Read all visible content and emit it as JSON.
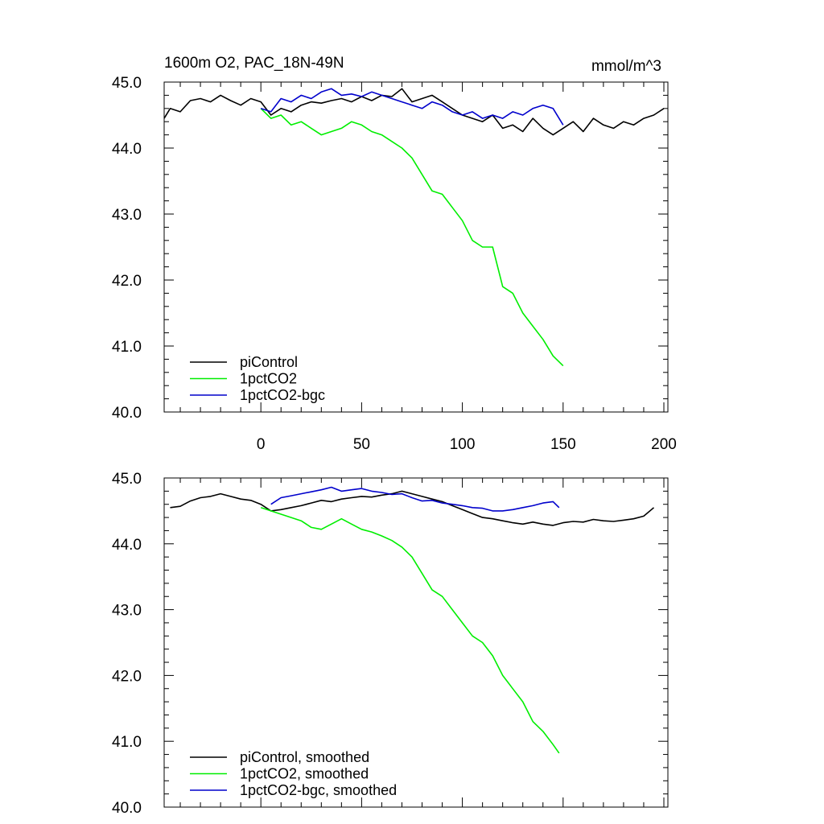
{
  "chart_data": [
    {
      "type": "line",
      "title": "1600m O2, PAC_18N-49N",
      "units": "mmol/m^3",
      "xlim": [
        -48,
        202
      ],
      "ylim": [
        40.0,
        45.0
      ],
      "xticks": [
        0,
        50,
        100,
        150,
        200
      ],
      "xtick_labels": [
        "0",
        "50",
        "100",
        "150",
        "200"
      ],
      "yticks": [
        40,
        41,
        42,
        43,
        44,
        45
      ],
      "ytick_labels": [
        "40.0",
        "41.0",
        "42.0",
        "43.0",
        "44.0",
        "45.0"
      ],
      "legend_position": "bottom-left",
      "series": [
        {
          "name": "piControl",
          "color": "#000000",
          "x": [
            -48,
            -45,
            -40,
            -35,
            -30,
            -25,
            -20,
            -15,
            -10,
            -5,
            0,
            5,
            10,
            15,
            20,
            25,
            30,
            35,
            40,
            45,
            50,
            55,
            60,
            65,
            70,
            75,
            80,
            85,
            90,
            95,
            100,
            105,
            110,
            115,
            120,
            125,
            130,
            135,
            140,
            145,
            150,
            155,
            160,
            165,
            170,
            175,
            180,
            185,
            190,
            195,
            200
          ],
          "y": [
            44.45,
            44.6,
            44.55,
            44.72,
            44.75,
            44.7,
            44.8,
            44.72,
            44.65,
            44.75,
            44.7,
            44.5,
            44.6,
            44.55,
            44.65,
            44.7,
            44.68,
            44.72,
            44.75,
            44.7,
            44.78,
            44.72,
            44.8,
            44.78,
            44.9,
            44.7,
            44.75,
            44.8,
            44.7,
            44.6,
            44.5,
            44.45,
            44.4,
            44.5,
            44.3,
            44.35,
            44.25,
            44.45,
            44.3,
            44.2,
            44.3,
            44.4,
            44.25,
            44.45,
            44.35,
            44.3,
            44.4,
            44.35,
            44.45,
            44.5,
            44.6
          ]
        },
        {
          "name": "1pctCO2",
          "color": "#00ee00",
          "x": [
            0,
            5,
            10,
            15,
            20,
            25,
            30,
            35,
            40,
            45,
            50,
            55,
            60,
            65,
            70,
            75,
            80,
            85,
            90,
            95,
            100,
            105,
            110,
            115,
            120,
            125,
            130,
            135,
            140,
            145,
            150
          ],
          "y": [
            44.6,
            44.45,
            44.5,
            44.35,
            44.4,
            44.3,
            44.2,
            44.25,
            44.3,
            44.4,
            44.35,
            44.25,
            44.2,
            44.1,
            44.0,
            43.85,
            43.6,
            43.35,
            43.3,
            43.1,
            42.9,
            42.6,
            42.5,
            42.5,
            41.9,
            41.8,
            41.5,
            41.3,
            41.1,
            40.85,
            40.7
          ]
        },
        {
          "name": "1pctCO2-bgc",
          "color": "#0000cc",
          "x": [
            0,
            5,
            10,
            15,
            20,
            25,
            30,
            35,
            40,
            45,
            50,
            55,
            60,
            65,
            70,
            75,
            80,
            85,
            90,
            95,
            100,
            105,
            110,
            115,
            120,
            125,
            130,
            135,
            140,
            145,
            150
          ],
          "y": [
            44.6,
            44.55,
            44.75,
            44.7,
            44.8,
            44.75,
            44.85,
            44.9,
            44.8,
            44.82,
            44.78,
            44.85,
            44.8,
            44.75,
            44.7,
            44.65,
            44.6,
            44.7,
            44.65,
            44.55,
            44.5,
            44.55,
            44.45,
            44.5,
            44.45,
            44.55,
            44.5,
            44.6,
            44.65,
            44.6,
            44.35
          ]
        }
      ]
    },
    {
      "type": "line",
      "xlim": [
        -48,
        202
      ],
      "ylim": [
        40.0,
        45.0
      ],
      "yticks": [
        40,
        41,
        42,
        43,
        44,
        45
      ],
      "ytick_labels": [
        "40.0",
        "41.0",
        "42.0",
        "43.0",
        "44.0",
        "45.0"
      ],
      "legend_position": "bottom-left",
      "series": [
        {
          "name": "piControl, smoothed",
          "color": "#000000",
          "x": [
            -45,
            -40,
            -35,
            -30,
            -25,
            -20,
            -15,
            -10,
            -5,
            0,
            5,
            10,
            15,
            20,
            25,
            30,
            35,
            40,
            45,
            50,
            55,
            60,
            65,
            70,
            75,
            80,
            85,
            90,
            95,
            100,
            105,
            110,
            115,
            120,
            125,
            130,
            135,
            140,
            145,
            150,
            155,
            160,
            165,
            170,
            175,
            180,
            185,
            190,
            195
          ],
          "y": [
            44.55,
            44.57,
            44.65,
            44.7,
            44.72,
            44.76,
            44.72,
            44.68,
            44.66,
            44.6,
            44.5,
            44.52,
            44.55,
            44.58,
            44.62,
            44.66,
            44.64,
            44.68,
            44.7,
            44.72,
            44.71,
            44.74,
            44.76,
            44.8,
            44.76,
            44.72,
            44.68,
            44.64,
            44.58,
            44.52,
            44.46,
            44.4,
            44.38,
            44.35,
            44.32,
            44.3,
            44.33,
            44.3,
            44.28,
            44.32,
            44.34,
            44.33,
            44.37,
            44.35,
            44.34,
            44.36,
            44.38,
            44.42,
            44.55
          ]
        },
        {
          "name": "1pctCO2, smoothed",
          "color": "#00ee00",
          "x": [
            0,
            5,
            10,
            15,
            20,
            25,
            30,
            35,
            40,
            45,
            50,
            55,
            60,
            65,
            70,
            75,
            80,
            85,
            90,
            95,
            100,
            105,
            110,
            115,
            120,
            125,
            130,
            135,
            140,
            145,
            148
          ],
          "y": [
            44.55,
            44.5,
            44.45,
            44.4,
            44.35,
            44.25,
            44.22,
            44.3,
            44.38,
            44.3,
            44.22,
            44.18,
            44.12,
            44.05,
            43.95,
            43.8,
            43.55,
            43.3,
            43.2,
            43.0,
            42.8,
            42.6,
            42.5,
            42.3,
            42.0,
            41.8,
            41.6,
            41.3,
            41.15,
            40.95,
            40.82
          ]
        },
        {
          "name": "1pctCO2-bgc, smoothed",
          "color": "#0000cc",
          "x": [
            5,
            10,
            15,
            20,
            25,
            30,
            35,
            40,
            45,
            50,
            55,
            60,
            65,
            70,
            75,
            80,
            85,
            90,
            95,
            100,
            105,
            110,
            115,
            120,
            125,
            130,
            135,
            140,
            145,
            148
          ],
          "y": [
            44.6,
            44.7,
            44.73,
            44.76,
            44.79,
            44.82,
            44.86,
            44.8,
            44.82,
            44.84,
            44.8,
            44.78,
            44.75,
            44.76,
            44.7,
            44.65,
            44.66,
            44.62,
            44.6,
            44.58,
            44.55,
            44.54,
            44.5,
            44.5,
            44.52,
            44.55,
            44.58,
            44.62,
            44.64,
            44.55
          ]
        }
      ]
    }
  ]
}
